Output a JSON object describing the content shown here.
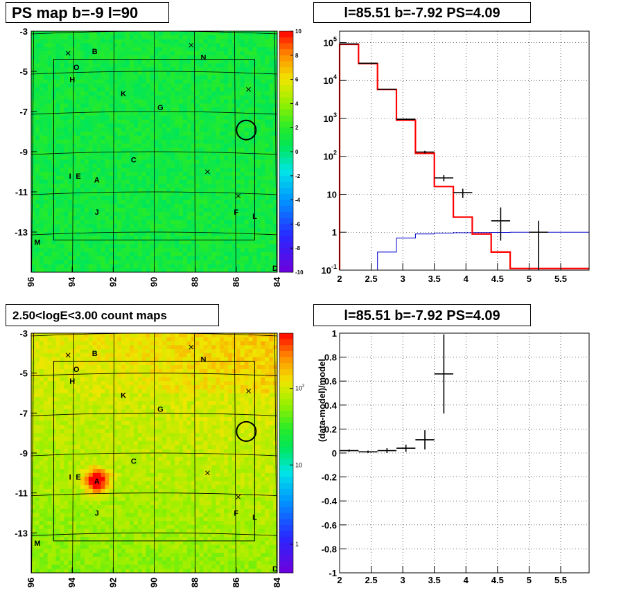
{
  "panels": {
    "ps_map_title": "PS map b=-9 l=90",
    "spectrum_title": "l=85.51 b=-7.92 PS=4.09",
    "count_map_title": "2.50<logE<3.00 count maps",
    "residual_title": "l=85.51 b=-7.92 PS=4.09"
  },
  "chart_data": [
    {
      "id": "ps_map",
      "type": "heatmap",
      "title": "PS map b=-9 l=90",
      "x_ticks": [
        "96",
        "94",
        "92",
        "90",
        "88",
        "86",
        "84"
      ],
      "y_ticks": [
        "-3",
        "-5",
        "-7",
        "-9",
        "-11",
        "-13"
      ],
      "xlim": [
        96,
        84
      ],
      "ylim": [
        -15,
        -3
      ],
      "colorbar": {
        "min": -10,
        "max": 10,
        "ticks": [
          "10",
          "8",
          "6",
          "4",
          "2",
          "0",
          "-2",
          "-4",
          "-6",
          "-8",
          "-10"
        ]
      },
      "sources": [
        {
          "label": "B",
          "l": 92.9,
          "b": -4.0
        },
        {
          "label": "O",
          "l": 93.8,
          "b": -4.8
        },
        {
          "label": "H",
          "l": 94.0,
          "b": -5.4
        },
        {
          "label": "N",
          "l": 87.6,
          "b": -4.3
        },
        {
          "label": "K",
          "l": 91.5,
          "b": -6.1
        },
        {
          "label": "G",
          "l": 89.7,
          "b": -6.8
        },
        {
          "label": "C",
          "l": 91.0,
          "b": -9.4
        },
        {
          "label": "I",
          "l": 94.1,
          "b": -10.2
        },
        {
          "label": "E",
          "l": 93.7,
          "b": -10.2
        },
        {
          "label": "A",
          "l": 92.8,
          "b": -10.4
        },
        {
          "label": "J",
          "l": 92.8,
          "b": -12.0
        },
        {
          "label": "F",
          "l": 86.0,
          "b": -12.0
        },
        {
          "label": "L",
          "l": 85.1,
          "b": -12.2
        },
        {
          "label": "M",
          "l": 95.7,
          "b": -13.5
        },
        {
          "label": "D",
          "l": 84.1,
          "b": -14.8
        }
      ],
      "markers": [
        {
          "l": 94.2,
          "b": -4.1
        },
        {
          "l": 88.2,
          "b": -3.7
        },
        {
          "l": 85.4,
          "b": -5.9
        },
        {
          "l": 87.4,
          "b": -10.0
        },
        {
          "l": 85.9,
          "b": -11.2
        }
      ],
      "circle": {
        "l": 85.51,
        "b": -7.92
      }
    },
    {
      "id": "spectrum",
      "type": "line",
      "title": "l=85.51 b=-7.92 PS=4.09",
      "x_ticks": [
        "2",
        "2.5",
        "3",
        "3.5",
        "4",
        "4.5",
        "5",
        "5.5"
      ],
      "y_ticks": [
        "10^-1",
        "1",
        "10",
        "10^2",
        "10^3",
        "10^4",
        "10^5"
      ],
      "xlim": [
        2,
        5.95
      ],
      "ylim": [
        0.1,
        200000
      ],
      "log_y": true,
      "grid": true,
      "series": [
        {
          "role": "model",
          "color": "#ff0000",
          "edges": [
            2.0,
            2.3,
            2.6,
            2.9,
            3.2,
            3.5,
            3.8,
            4.1,
            4.4,
            4.7,
            5.95
          ],
          "values": [
            90000,
            28000,
            5800,
            900,
            120,
            16,
            2.5,
            0.9,
            0.3,
            0.11
          ]
        },
        {
          "role": "point-source",
          "color": "#0000cc",
          "edges": [
            2.6,
            2.9,
            3.2,
            3.5,
            3.8,
            4.1,
            4.4,
            4.7,
            5.95
          ],
          "values": [
            0.3,
            0.7,
            0.9,
            0.95,
            0.97,
            0.98,
            0.99,
            1.0
          ]
        },
        {
          "role": "data",
          "color": "#000000",
          "points": [
            {
              "x": 2.15,
              "y": 92000,
              "xerr": 0.15,
              "ylo": 91000,
              "yhi": 93000
            },
            {
              "x": 2.45,
              "y": 28500,
              "xerr": 0.15,
              "ylo": 28200,
              "yhi": 28800
            },
            {
              "x": 2.75,
              "y": 5900,
              "xerr": 0.15,
              "ylo": 5800,
              "yhi": 6000
            },
            {
              "x": 3.05,
              "y": 950,
              "xerr": 0.15,
              "ylo": 920,
              "yhi": 980
            },
            {
              "x": 3.35,
              "y": 130,
              "xerr": 0.15,
              "ylo": 120,
              "yhi": 140
            },
            {
              "x": 3.65,
              "y": 27,
              "xerr": 0.15,
              "ylo": 22,
              "yhi": 32
            },
            {
              "x": 3.95,
              "y": 11,
              "xerr": 0.15,
              "ylo": 8,
              "yhi": 14
            },
            {
              "x": 4.55,
              "y": 2,
              "xerr": 0.15,
              "ylo": 0.6,
              "yhi": 4.5
            },
            {
              "x": 5.15,
              "y": 1,
              "xerr": 0.15,
              "ylo": 0.1,
              "yhi": 2
            }
          ]
        }
      ]
    },
    {
      "id": "count_map",
      "type": "heatmap",
      "title": "2.50<logE<3.00 count maps",
      "x_ticks": [
        "96",
        "94",
        "92",
        "90",
        "88",
        "86",
        "84"
      ],
      "y_ticks": [
        "-3",
        "-5",
        "-7",
        "-9",
        "-11",
        "-13"
      ],
      "xlim": [
        96,
        84
      ],
      "ylim": [
        -15,
        -3
      ],
      "colorbar": {
        "log": true,
        "ticks": [
          "10^2",
          "10",
          "1"
        ]
      },
      "sources": [
        {
          "label": "B",
          "l": 92.9,
          "b": -4.0
        },
        {
          "label": "O",
          "l": 93.8,
          "b": -4.8
        },
        {
          "label": "H",
          "l": 94.0,
          "b": -5.4
        },
        {
          "label": "N",
          "l": 87.6,
          "b": -4.3
        },
        {
          "label": "K",
          "l": 91.5,
          "b": -6.1
        },
        {
          "label": "G",
          "l": 89.7,
          "b": -6.8
        },
        {
          "label": "C",
          "l": 91.0,
          "b": -9.4
        },
        {
          "label": "I",
          "l": 94.1,
          "b": -10.2
        },
        {
          "label": "E",
          "l": 93.7,
          "b": -10.2
        },
        {
          "label": "A",
          "l": 92.8,
          "b": -10.4
        },
        {
          "label": "J",
          "l": 92.8,
          "b": -12.0
        },
        {
          "label": "F",
          "l": 86.0,
          "b": -12.0
        },
        {
          "label": "L",
          "l": 85.1,
          "b": -12.2
        },
        {
          "label": "M",
          "l": 95.7,
          "b": -13.5
        },
        {
          "label": "D",
          "l": 84.1,
          "b": -14.8
        }
      ],
      "markers": [
        {
          "l": 94.2,
          "b": -4.1
        },
        {
          "l": 88.2,
          "b": -3.7
        },
        {
          "l": 85.4,
          "b": -5.9
        },
        {
          "l": 87.4,
          "b": -10.0
        },
        {
          "l": 85.9,
          "b": -11.2
        }
      ],
      "circle": {
        "l": 85.51,
        "b": -7.92
      },
      "bright_source": {
        "l": 92.8,
        "b": -10.4
      }
    },
    {
      "id": "residual",
      "type": "scatter",
      "title": "l=85.51 b=-7.92 PS=4.09",
      "x_ticks": [
        "2",
        "2.5",
        "3",
        "3.5",
        "4",
        "4.5",
        "5",
        "5.5"
      ],
      "y_ticks": [
        "1",
        "0.8",
        "0.6",
        "0.4",
        "0.2",
        "0",
        "-0.2",
        "-0.4",
        "-0.6",
        "-0.8",
        "-1"
      ],
      "ylabel": "(data-model)/model",
      "xlim": [
        2,
        5.95
      ],
      "ylim": [
        -1,
        1
      ],
      "grid": true,
      "points": [
        {
          "x": 2.15,
          "y": 0.02,
          "xerr": 0.15,
          "yerr": 0.01
        },
        {
          "x": 2.45,
          "y": 0.01,
          "xerr": 0.15,
          "yerr": 0.01
        },
        {
          "x": 2.75,
          "y": 0.02,
          "xerr": 0.15,
          "yerr": 0.02
        },
        {
          "x": 3.05,
          "y": 0.04,
          "xerr": 0.15,
          "yerr": 0.03
        },
        {
          "x": 3.35,
          "y": 0.11,
          "xerr": 0.15,
          "yerr": 0.08
        },
        {
          "x": 3.65,
          "y": 0.66,
          "xerr": 0.15,
          "yerr": 0.33
        }
      ]
    }
  ]
}
